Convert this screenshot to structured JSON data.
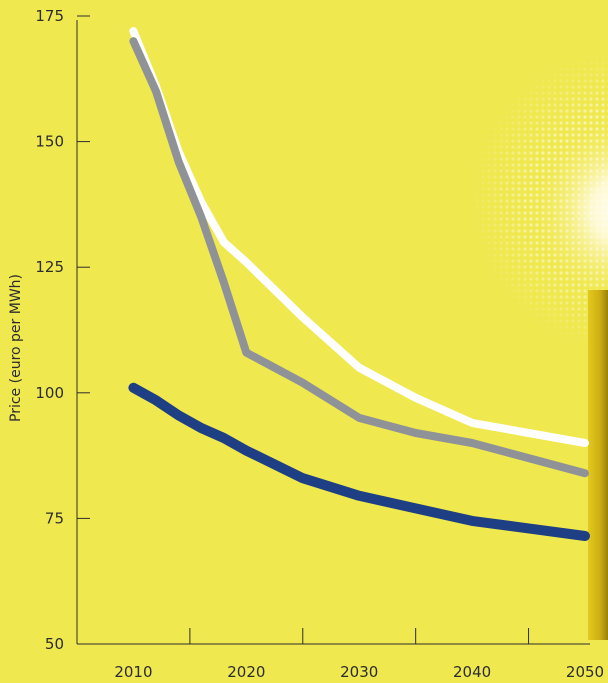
{
  "chart_data": {
    "type": "line",
    "title": "",
    "xlabel": "",
    "ylabel": "Price (euro per MWh)",
    "xlim": [
      2005,
      2050
    ],
    "ylim": [
      50,
      175
    ],
    "x_ticks": [
      2010,
      2020,
      2030,
      2040,
      2050
    ],
    "y_ticks": [
      50,
      75,
      100,
      125,
      150,
      175
    ],
    "grid": false,
    "legend": "none",
    "series": [
      {
        "color": "#ffffff",
        "x": [
          2010,
          2012,
          2014,
          2016,
          2018,
          2020,
          2025,
          2030,
          2035,
          2040,
          2045,
          2050
        ],
        "y": [
          172,
          161,
          148,
          138,
          130,
          126,
          115,
          105,
          99,
          94,
          92,
          90
        ]
      },
      {
        "color": "#8f9296",
        "x": [
          2010,
          2012,
          2014,
          2016,
          2018,
          2020,
          2025,
          2030,
          2035,
          2040,
          2045,
          2050
        ],
        "y": [
          170,
          160,
          146,
          135,
          122,
          108,
          102,
          95,
          92,
          90,
          87,
          84
        ]
      },
      {
        "color": "#1e3f84",
        "x": [
          2010,
          2012,
          2014,
          2016,
          2018,
          2020,
          2025,
          2030,
          2035,
          2040,
          2045,
          2050
        ],
        "y": [
          101,
          98.5,
          95.5,
          93,
          91,
          88.5,
          83,
          79.5,
          77,
          74.5,
          73,
          71.5
        ]
      }
    ]
  }
}
